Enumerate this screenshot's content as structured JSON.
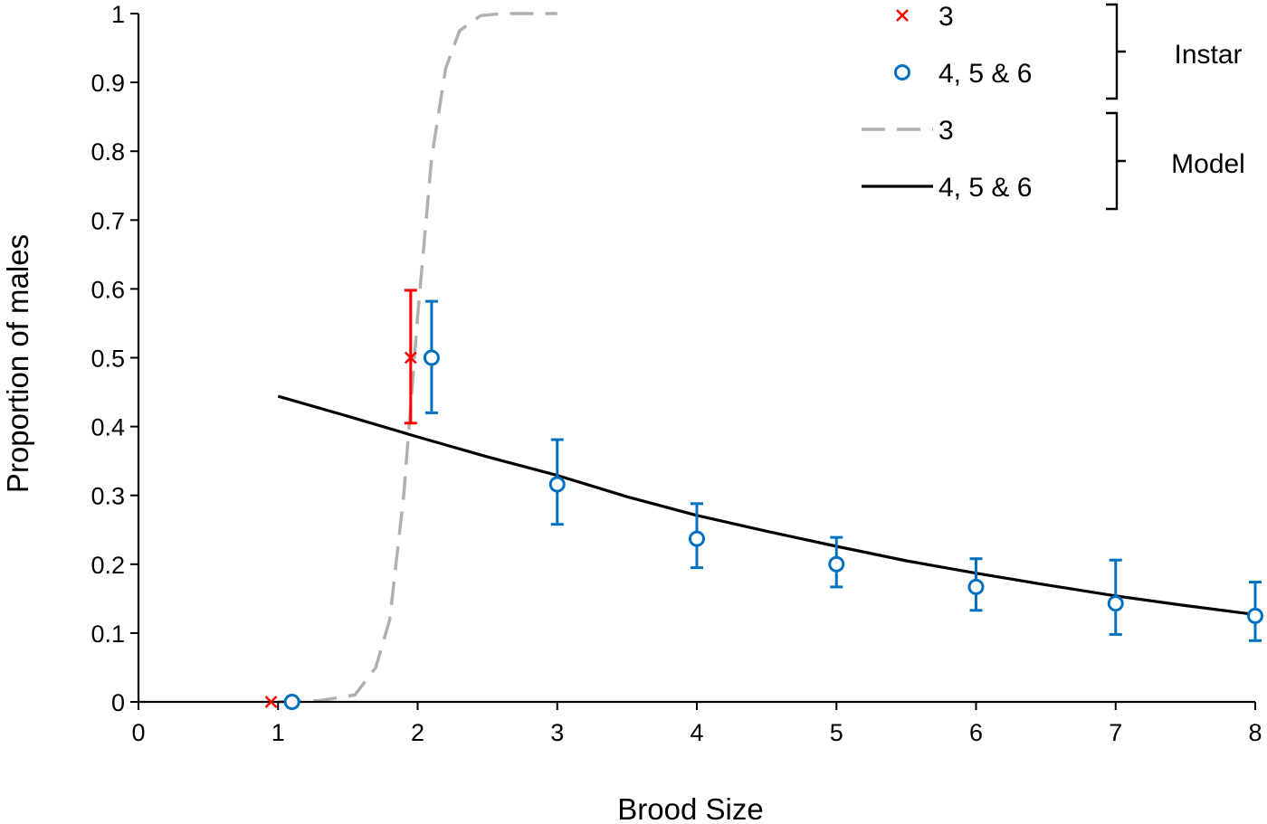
{
  "chart_data": {
    "type": "scatter",
    "xlabel": "Brood Size",
    "ylabel": "Proportion of males",
    "xlim": [
      0,
      8
    ],
    "ylim": [
      0,
      1
    ],
    "x_ticks": [
      "0",
      "1",
      "2",
      "3",
      "4",
      "5",
      "6",
      "7",
      "8"
    ],
    "y_ticks": [
      "0",
      "0.1",
      "0.2",
      "0.3",
      "0.4",
      "0.5",
      "0.6",
      "0.7",
      "0.8",
      "0.9",
      "1"
    ],
    "grid": false,
    "legend_position": "top-right",
    "legend_groups": [
      {
        "label": "Instar",
        "entries": [
          "3",
          "4, 5 & 6"
        ]
      },
      {
        "label": "Model",
        "entries": [
          "3",
          "4, 5 & 6"
        ]
      }
    ],
    "series": [
      {
        "name": "3",
        "group": "Instar",
        "kind": "points",
        "marker": "x",
        "color": "#ff0000",
        "points": [
          {
            "x": 1,
            "y": 0
          },
          {
            "x": 2,
            "y": 0.5,
            "err_low": 0.405,
            "err_high": 0.598
          }
        ]
      },
      {
        "name": "4, 5 & 6",
        "group": "Instar",
        "kind": "points",
        "marker": "circle",
        "color": "#0070c0",
        "points": [
          {
            "x": 1,
            "y": 0
          },
          {
            "x": 2,
            "y": 0.5,
            "err_low": 0.42,
            "err_high": 0.582
          },
          {
            "x": 3,
            "y": 0.316,
            "err_low": 0.258,
            "err_high": 0.381
          },
          {
            "x": 4,
            "y": 0.237,
            "err_low": 0.195,
            "err_high": 0.288
          },
          {
            "x": 5,
            "y": 0.2,
            "err_low": 0.167,
            "err_high": 0.239
          },
          {
            "x": 6,
            "y": 0.167,
            "err_low": 0.133,
            "err_high": 0.208
          },
          {
            "x": 7,
            "y": 0.143,
            "err_low": 0.098,
            "err_high": 0.206
          },
          {
            "x": 8,
            "y": 0.125,
            "err_low": 0.089,
            "err_high": 0.174
          }
        ]
      },
      {
        "name": "3",
        "group": "Model",
        "kind": "line",
        "dash": true,
        "color": "#b0b0b0",
        "points": [
          {
            "x": 1.0,
            "y": 0
          },
          {
            "x": 1.3,
            "y": 0.002
          },
          {
            "x": 1.55,
            "y": 0.01
          },
          {
            "x": 1.7,
            "y": 0.05
          },
          {
            "x": 1.8,
            "y": 0.12
          },
          {
            "x": 1.9,
            "y": 0.3
          },
          {
            "x": 2.0,
            "y": 0.56
          },
          {
            "x": 2.1,
            "y": 0.79
          },
          {
            "x": 2.2,
            "y": 0.92
          },
          {
            "x": 2.3,
            "y": 0.975
          },
          {
            "x": 2.45,
            "y": 0.997
          },
          {
            "x": 2.6,
            "y": 1.0
          },
          {
            "x": 3.0,
            "y": 1.0
          }
        ]
      },
      {
        "name": "4, 5 & 6",
        "group": "Model",
        "kind": "line",
        "dash": false,
        "color": "#000000",
        "points": [
          {
            "x": 1.0,
            "y": 0.444
          },
          {
            "x": 1.5,
            "y": 0.415
          },
          {
            "x": 2.0,
            "y": 0.385
          },
          {
            "x": 2.5,
            "y": 0.356
          },
          {
            "x": 3.0,
            "y": 0.329
          },
          {
            "x": 3.5,
            "y": 0.298
          },
          {
            "x": 4.0,
            "y": 0.271
          },
          {
            "x": 4.5,
            "y": 0.248
          },
          {
            "x": 5.0,
            "y": 0.226
          },
          {
            "x": 5.5,
            "y": 0.205
          },
          {
            "x": 6.0,
            "y": 0.187
          },
          {
            "x": 6.5,
            "y": 0.17
          },
          {
            "x": 7.0,
            "y": 0.154
          },
          {
            "x": 7.5,
            "y": 0.14
          },
          {
            "x": 8.0,
            "y": 0.127
          }
        ]
      }
    ]
  }
}
